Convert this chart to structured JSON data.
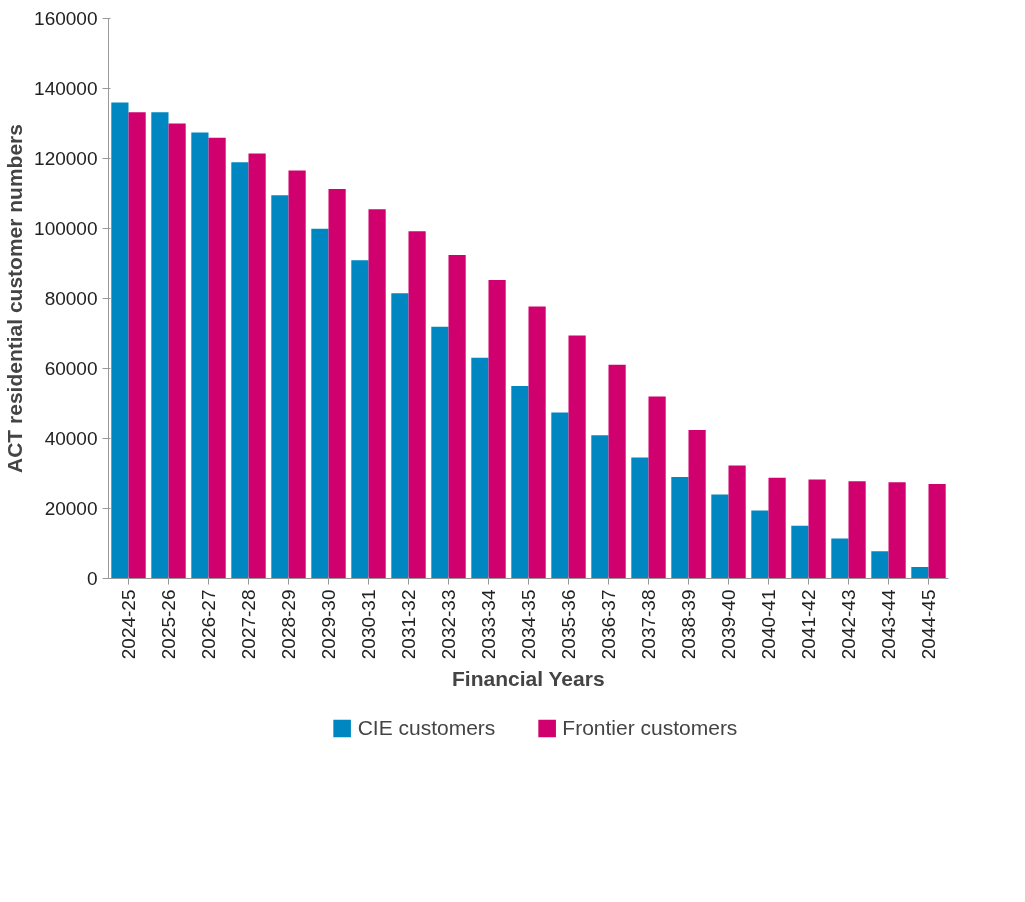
{
  "chart_data": {
    "type": "bar",
    "xlabel": "Financial Years",
    "ylabel": "ACT residential customer numbers",
    "categories": [
      "2024-25",
      "2025-26",
      "2026-27",
      "2027-28",
      "2028-29",
      "2029-30",
      "2030-31",
      "2031-32",
      "2032-33",
      "2033-34",
      "2034-35",
      "2035-36",
      "2036-37",
      "2037-38",
      "2038-39",
      "2039-40",
      "2040-41",
      "2041-42",
      "2042-43",
      "2043-44",
      "2044-45"
    ],
    "series": [
      {
        "name": "CIE customers",
        "color": "#0086c0",
        "values": [
          136000,
          133200,
          127400,
          118900,
          109500,
          99900,
          90900,
          81500,
          71900,
          63100,
          55000,
          47400,
          40900,
          34600,
          29000,
          24000,
          19400,
          15100,
          11400,
          7800,
          3300
        ]
      },
      {
        "name": "Frontier customers",
        "color": "#d1006f",
        "values": [
          133200,
          130000,
          125900,
          121400,
          116600,
          111300,
          105500,
          99200,
          92400,
          85300,
          77700,
          69400,
          61100,
          52000,
          42400,
          32300,
          28800,
          28300,
          27800,
          27500,
          27000
        ]
      }
    ],
    "ylim": [
      0,
      160000
    ],
    "yticks": [
      0,
      20000,
      40000,
      60000,
      80000,
      100000,
      120000,
      140000,
      160000
    ],
    "grid": false,
    "legend": "bottom"
  }
}
